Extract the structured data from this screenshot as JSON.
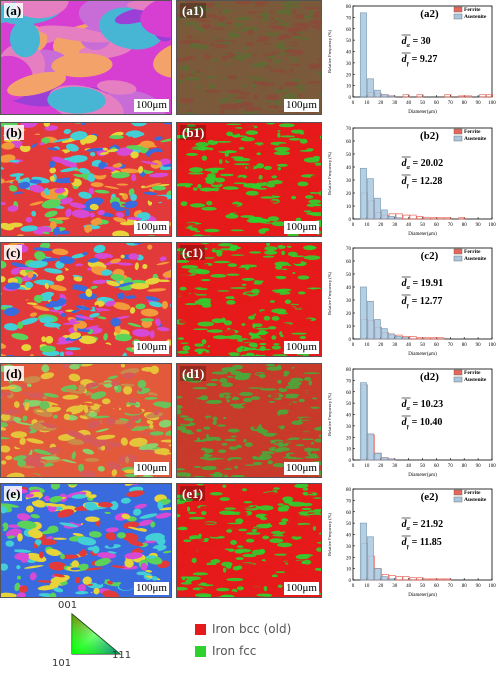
{
  "rows": [
    {
      "ipf_label": "(a)",
      "phase_label": "(a1)",
      "hist_label": "(a2)",
      "scale": "100μm",
      "d_alpha": "30",
      "d_gamma": "9.27",
      "ipf_colors": [
        "#d63fd2",
        "#e67fc1",
        "#46b6d4",
        "#f3a36a",
        "#9c3fd7",
        "#c86dd8"
      ],
      "phase_colors": [
        "#7a5a3a",
        "#5f6a35",
        "#8a4a3a"
      ]
    },
    {
      "ipf_label": "(b)",
      "phase_label": "(b1)",
      "hist_label": "(b2)",
      "scale": "100μm",
      "d_alpha": "20.02",
      "d_gamma": "12.28",
      "ipf_colors": [
        "#e23a3a",
        "#5bd35b",
        "#3a6bde",
        "#e6d43a",
        "#d64ad6",
        "#42cfd6",
        "#f39a3a"
      ],
      "phase_colors": [
        "#e61a1a",
        "#2ed12e"
      ]
    },
    {
      "ipf_label": "(c)",
      "phase_label": "(c1)",
      "hist_label": "(c2)",
      "scale": "100μm",
      "d_alpha": "19.91",
      "d_gamma": "12.77",
      "ipf_colors": [
        "#e23a3a",
        "#5bd35b",
        "#3a6bde",
        "#e6d43a",
        "#d64ad6",
        "#42cfd6",
        "#f39a3a"
      ],
      "phase_colors": [
        "#e61a1a",
        "#2ed12e"
      ]
    },
    {
      "ipf_label": "(d)",
      "phase_label": "(d1)",
      "hist_label": "(d2)",
      "scale": "100μm",
      "d_alpha": "10.23",
      "d_gamma": "10.40",
      "ipf_colors": [
        "#e35a3a",
        "#6bc25b",
        "#c98a4a",
        "#e6c43a",
        "#8ad06b",
        "#d65a5a"
      ],
      "phase_colors": [
        "#c83a2a",
        "#4aa83a"
      ]
    },
    {
      "ipf_label": "(e)",
      "phase_label": "(e1)",
      "hist_label": "(e2)",
      "scale": "100μm",
      "d_alpha": "21.92",
      "d_gamma": "11.85",
      "ipf_colors": [
        "#3a6bde",
        "#e23a3a",
        "#5bd35b",
        "#d64ad6",
        "#42cfd6",
        "#e6d43a"
      ],
      "phase_colors": [
        "#e61a1a",
        "#2ed12e"
      ]
    }
  ],
  "chart_data": [
    {
      "type": "bar",
      "panel": "(a2)",
      "x": [
        5,
        10,
        15,
        20,
        25,
        30,
        35,
        40,
        45,
        50,
        55,
        60,
        65,
        70,
        75,
        80,
        85,
        90,
        95,
        100
      ],
      "series": [
        {
          "name": "Ferrite",
          "color": "#e8675c",
          "values": [
            0,
            0,
            4,
            3,
            2,
            1,
            0,
            2,
            0,
            2,
            0,
            0,
            0,
            2,
            0,
            1,
            1,
            0,
            2,
            2
          ]
        },
        {
          "name": "Austenite",
          "color": "#a9c8e0",
          "values": [
            0,
            74,
            16,
            6,
            2,
            1,
            0,
            0,
            0,
            0,
            0,
            0,
            0,
            0,
            0,
            0,
            0,
            0,
            0,
            0
          ]
        }
      ],
      "xlabel": "Diameter(μm)",
      "ylabel": "Relative Frequency (%)",
      "xticks": [
        0,
        10,
        20,
        30,
        40,
        50,
        60,
        70,
        80,
        90,
        100
      ],
      "yticks": [
        0,
        10,
        20,
        30,
        40,
        50,
        60,
        70,
        80
      ],
      "xlim": [
        0,
        100
      ],
      "ylim": [
        0,
        80
      ]
    },
    {
      "type": "bar",
      "panel": "(b2)",
      "x": [
        5,
        10,
        15,
        20,
        25,
        30,
        35,
        40,
        45,
        50,
        55,
        60,
        65,
        70,
        75,
        80,
        85,
        90,
        95,
        100
      ],
      "series": [
        {
          "name": "Ferrite",
          "color": "#e8675c",
          "values": [
            0,
            20,
            14,
            5,
            3,
            4,
            4,
            3,
            3,
            2,
            1,
            1,
            1,
            1,
            0,
            1,
            0,
            0,
            0,
            0
          ]
        },
        {
          "name": "Austenite",
          "color": "#a9c8e0",
          "values": [
            0,
            39,
            31,
            16,
            7,
            2,
            1,
            0,
            0,
            0,
            0,
            0,
            0,
            0,
            0,
            0,
            0,
            0,
            0,
            0
          ]
        }
      ],
      "xlabel": "Diameter(μm)",
      "ylabel": "Relative Frequency (%)",
      "xticks": [
        0,
        10,
        20,
        30,
        40,
        50,
        60,
        70,
        80,
        90,
        100
      ],
      "yticks": [
        0,
        10,
        20,
        30,
        40,
        50,
        60,
        70
      ],
      "xlim": [
        0,
        100
      ],
      "ylim": [
        0,
        70
      ]
    },
    {
      "type": "bar",
      "panel": "(c2)",
      "x": [
        5,
        10,
        15,
        20,
        25,
        30,
        35,
        40,
        45,
        50,
        55,
        60,
        65,
        70,
        75,
        80,
        85,
        90,
        95,
        100
      ],
      "series": [
        {
          "name": "Ferrite",
          "color": "#e8675c",
          "values": [
            0,
            15,
            14,
            9,
            5,
            3,
            3,
            2,
            2,
            1,
            1,
            1,
            1,
            0,
            0,
            0,
            0,
            0,
            0,
            0
          ]
        },
        {
          "name": "Austenite",
          "color": "#a9c8e0",
          "values": [
            0,
            40,
            29,
            15,
            8,
            4,
            2,
            1,
            0,
            0,
            0,
            0,
            0,
            0,
            0,
            0,
            0,
            0,
            0,
            0
          ]
        }
      ],
      "xlabel": "Diameter(μm)",
      "ylabel": "Relative Frequency (%)",
      "xticks": [
        0,
        10,
        20,
        30,
        40,
        50,
        60,
        70,
        80,
        90,
        100
      ],
      "yticks": [
        0,
        10,
        20,
        30,
        40,
        50,
        60,
        70
      ],
      "xlim": [
        0,
        100
      ],
      "ylim": [
        0,
        70
      ]
    },
    {
      "type": "bar",
      "panel": "(d2)",
      "x": [
        5,
        10,
        15,
        20,
        25,
        30,
        35,
        40,
        45,
        50,
        55,
        60,
        65,
        70,
        75,
        80,
        85,
        90,
        95,
        100
      ],
      "series": [
        {
          "name": "Ferrite",
          "color": "#e8675c",
          "values": [
            0,
            66,
            22,
            6,
            2,
            1,
            0,
            0,
            0,
            0,
            0,
            0,
            0,
            0,
            0,
            0,
            0,
            0,
            0,
            0
          ]
        },
        {
          "name": "Austenite",
          "color": "#a9c8e0",
          "values": [
            0,
            68,
            23,
            6,
            2,
            1,
            0,
            0,
            0,
            0,
            0,
            0,
            0,
            0,
            0,
            0,
            0,
            0,
            0,
            0
          ]
        }
      ],
      "xlabel": "Diameter(μm)",
      "ylabel": "Relative Frequency (%)",
      "xticks": [
        0,
        10,
        20,
        30,
        40,
        50,
        60,
        70,
        80,
        90,
        100
      ],
      "yticks": [
        0,
        10,
        20,
        30,
        40,
        50,
        60,
        70,
        80
      ],
      "xlim": [
        0,
        100
      ],
      "ylim": [
        0,
        80
      ]
    },
    {
      "type": "bar",
      "panel": "(e2)",
      "x": [
        5,
        10,
        15,
        20,
        25,
        30,
        35,
        40,
        45,
        50,
        55,
        60,
        65,
        70,
        75,
        80,
        85,
        90,
        95,
        100
      ],
      "series": [
        {
          "name": "Ferrite",
          "color": "#e8675c",
          "values": [
            0,
            32,
            21,
            10,
            5,
            4,
            3,
            3,
            2,
            2,
            1,
            1,
            1,
            1,
            0,
            0,
            0,
            0,
            0,
            0
          ]
        },
        {
          "name": "Austenite",
          "color": "#a9c8e0",
          "values": [
            0,
            50,
            38,
            10,
            3,
            1,
            0,
            0,
            0,
            0,
            0,
            0,
            0,
            0,
            0,
            0,
            0,
            0,
            0,
            0
          ]
        }
      ],
      "xlabel": "Diameter(μm)",
      "ylabel": "Relative Frequency (%)",
      "xticks": [
        0,
        10,
        20,
        30,
        40,
        50,
        60,
        70,
        80,
        90,
        100
      ],
      "yticks": [
        0,
        10,
        20,
        30,
        40,
        50,
        60,
        70,
        80
      ],
      "xlim": [
        0,
        100
      ],
      "ylim": [
        0,
        80
      ]
    }
  ],
  "legend": {
    "items": [
      {
        "label": "Iron bcc (old)",
        "color": "#e61a1a"
      },
      {
        "label": "Iron fcc",
        "color": "#2ed12e"
      }
    ],
    "ipf_key": {
      "top": "001",
      "bottom_left": "101",
      "bottom_right": "111"
    }
  }
}
